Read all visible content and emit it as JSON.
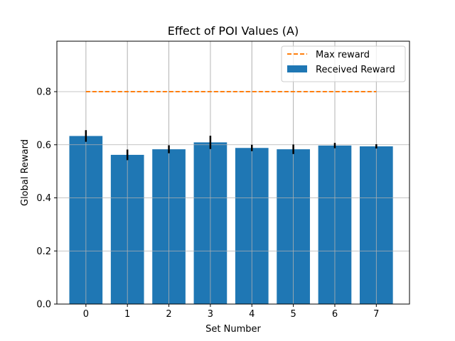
{
  "chart_data": {
    "type": "bar",
    "title": "Effect of POI Values (A)",
    "xlabel": "Set Number",
    "ylabel": "Global Reward",
    "categories": [
      "0",
      "1",
      "2",
      "3",
      "4",
      "5",
      "6",
      "7"
    ],
    "x_ticks": [
      "0",
      "1",
      "2",
      "3",
      "4",
      "5",
      "6",
      "7"
    ],
    "y_ticks": [
      "0.0",
      "0.2",
      "0.4",
      "0.6",
      "0.8"
    ],
    "ylim": [
      0.0,
      0.99
    ],
    "xlim": [
      -0.7,
      7.8
    ],
    "grid": true,
    "legend_position": "top-right",
    "series": [
      {
        "name": "Received Reward",
        "kind": "bar",
        "color": "#1f77b4",
        "values": [
          0.633,
          0.562,
          0.583,
          0.609,
          0.588,
          0.583,
          0.597,
          0.594
        ],
        "errors": [
          0.022,
          0.02,
          0.015,
          0.025,
          0.012,
          0.018,
          0.01,
          0.008
        ]
      },
      {
        "name": "Max reward",
        "kind": "line",
        "style": "dashed",
        "color": "#ff7f0e",
        "x_range": [
          0,
          7
        ],
        "value": 0.8
      }
    ],
    "error_bar_color": "#000000",
    "grid_color": "#b0b0b0"
  }
}
